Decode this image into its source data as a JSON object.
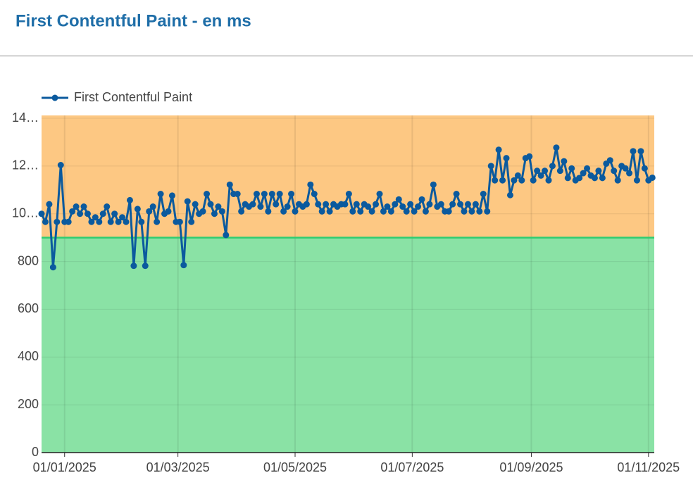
{
  "chart_data": {
    "type": "line",
    "title": "First Contentful Paint - en ms",
    "xlim": [
      "2024-12-20",
      "2025-11-04"
    ],
    "xticks": [
      {
        "value": "2025-01-01",
        "label": "01/01/2025"
      },
      {
        "value": "2025-03-01",
        "label": "01/03/2025"
      },
      {
        "value": "2025-05-01",
        "label": "01/05/2025"
      },
      {
        "value": "2025-07-01",
        "label": "01/07/2025"
      },
      {
        "value": "2025-09-01",
        "label": "01/09/2025"
      },
      {
        "value": "2025-11-01",
        "label": "01/11/2025"
      }
    ],
    "ylim": [
      0,
      1400
    ],
    "yticks": [
      0,
      200,
      400,
      600,
      800,
      {
        "value": 1000,
        "label": "10…"
      },
      {
        "value": 1200,
        "label": "12…"
      },
      {
        "value": 1400,
        "label": "14…"
      }
    ],
    "grid": true,
    "legend": "top-left",
    "bands": [
      {
        "from": 0,
        "to": 900,
        "color": "#8ae2a5"
      },
      {
        "from": 900,
        "to": 1400,
        "color": "#fdc883"
      }
    ],
    "threshold": {
      "value": 900,
      "color": "#2ecc71"
    },
    "x": [
      "2024-12-20",
      "2024-12-22",
      "2024-12-24",
      "2024-12-26",
      "2024-12-28",
      "2024-12-30",
      "2025-01-01",
      "2025-01-03",
      "2025-01-05",
      "2025-01-07",
      "2025-01-09",
      "2025-01-11",
      "2025-01-13",
      "2025-01-15",
      "2025-01-17",
      "2025-01-19",
      "2025-01-21",
      "2025-01-23",
      "2025-01-25",
      "2025-01-27",
      "2025-01-29",
      "2025-01-31",
      "2025-02-02",
      "2025-02-04",
      "2025-02-06",
      "2025-02-08",
      "2025-02-10",
      "2025-02-12",
      "2025-02-14",
      "2025-02-16",
      "2025-02-18",
      "2025-02-20",
      "2025-02-22",
      "2025-02-24",
      "2025-02-26",
      "2025-02-28",
      "2025-03-02",
      "2025-03-04",
      "2025-03-06",
      "2025-03-08",
      "2025-03-10",
      "2025-03-12",
      "2025-03-14",
      "2025-03-16",
      "2025-03-18",
      "2025-03-20",
      "2025-03-22",
      "2025-03-24",
      "2025-03-26",
      "2025-03-28",
      "2025-03-30",
      "2025-04-01",
      "2025-04-03",
      "2025-04-05",
      "2025-04-07",
      "2025-04-09",
      "2025-04-11",
      "2025-04-13",
      "2025-04-15",
      "2025-04-17",
      "2025-04-19",
      "2025-04-21",
      "2025-04-23",
      "2025-04-25",
      "2025-04-27",
      "2025-04-29",
      "2025-05-01",
      "2025-05-03",
      "2025-05-05",
      "2025-05-07",
      "2025-05-09",
      "2025-05-11",
      "2025-05-13",
      "2025-05-15",
      "2025-05-17",
      "2025-05-19",
      "2025-05-21",
      "2025-05-23",
      "2025-05-25",
      "2025-05-27",
      "2025-05-29",
      "2025-05-31",
      "2025-06-02",
      "2025-06-04",
      "2025-06-06",
      "2025-06-08",
      "2025-06-10",
      "2025-06-12",
      "2025-06-14",
      "2025-06-16",
      "2025-06-18",
      "2025-06-20",
      "2025-06-22",
      "2025-06-24",
      "2025-06-26",
      "2025-06-28",
      "2025-06-30",
      "2025-07-02",
      "2025-07-04",
      "2025-07-06",
      "2025-07-08",
      "2025-07-10",
      "2025-07-12",
      "2025-07-14",
      "2025-07-16",
      "2025-07-18",
      "2025-07-20",
      "2025-07-22",
      "2025-07-24",
      "2025-07-26",
      "2025-07-28",
      "2025-07-30",
      "2025-08-01",
      "2025-08-03",
      "2025-08-05",
      "2025-08-07",
      "2025-08-09",
      "2025-08-11",
      "2025-08-13",
      "2025-08-15",
      "2025-08-17",
      "2025-08-19",
      "2025-08-21",
      "2025-08-23",
      "2025-08-25",
      "2025-08-27",
      "2025-08-29",
      "2025-08-31",
      "2025-09-02",
      "2025-09-04",
      "2025-09-06",
      "2025-09-08",
      "2025-09-10",
      "2025-09-12",
      "2025-09-14",
      "2025-09-16",
      "2025-09-18",
      "2025-09-20",
      "2025-09-22",
      "2025-09-24",
      "2025-09-26",
      "2025-09-28",
      "2025-09-30",
      "2025-10-02",
      "2025-10-04",
      "2025-10-06",
      "2025-10-08",
      "2025-10-10",
      "2025-10-12",
      "2025-10-14",
      "2025-10-16",
      "2025-10-18",
      "2025-10-20",
      "2025-10-22",
      "2025-10-24",
      "2025-10-26",
      "2025-10-28",
      "2025-10-30",
      "2025-11-01",
      "2025-11-03"
    ],
    "series": [
      {
        "name": "First Contentful Paint",
        "color": "#0b5a9e",
        "values": [
          1000,
          966,
          1040,
          776,
          966,
          1204,
          966,
          966,
          1010,
          1030,
          1000,
          1030,
          1000,
          966,
          985,
          966,
          1000,
          1030,
          966,
          1000,
          966,
          985,
          966,
          1057,
          782,
          1020,
          966,
          782,
          1010,
          1030,
          966,
          1083,
          1000,
          1010,
          1076,
          966,
          966,
          785,
          1052,
          966,
          1040,
          1000,
          1010,
          1083,
          1040,
          1000,
          1030,
          1010,
          911,
          1122,
          1083,
          1083,
          1010,
          1040,
          1030,
          1040,
          1083,
          1030,
          1083,
          1010,
          1083,
          1040,
          1083,
          1010,
          1030,
          1083,
          1010,
          1040,
          1030,
          1040,
          1122,
          1083,
          1040,
          1010,
          1040,
          1010,
          1040,
          1030,
          1040,
          1040,
          1083,
          1010,
          1040,
          1010,
          1040,
          1030,
          1010,
          1040,
          1083,
          1010,
          1030,
          1010,
          1040,
          1060,
          1030,
          1010,
          1040,
          1010,
          1030,
          1060,
          1010,
          1040,
          1122,
          1030,
          1040,
          1010,
          1010,
          1040,
          1083,
          1040,
          1010,
          1040,
          1010,
          1040,
          1010,
          1083,
          1010,
          1200,
          1140,
          1268,
          1140,
          1233,
          1078,
          1140,
          1160,
          1140,
          1233,
          1240,
          1140,
          1180,
          1160,
          1180,
          1140,
          1200,
          1277,
          1180,
          1220,
          1150,
          1190,
          1140,
          1150,
          1170,
          1190,
          1160,
          1150,
          1180,
          1150,
          1210,
          1224,
          1180,
          1140,
          1200,
          1190,
          1170,
          1262,
          1140,
          1262,
          1190,
          1140,
          1151
        ]
      }
    ]
  }
}
